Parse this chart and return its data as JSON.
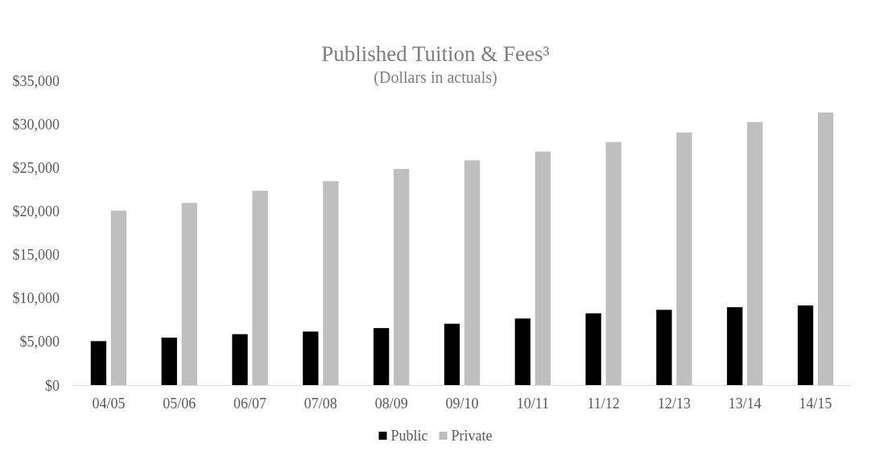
{
  "chart_data": {
    "type": "bar",
    "title": "Published Tuition & Fees³",
    "subtitle": "(Dollars in actuals)",
    "categories": [
      "04/05",
      "05/06",
      "06/07",
      "07/08",
      "08/09",
      "09/10",
      "10/11",
      "11/12",
      "12/13",
      "13/14",
      "14/15"
    ],
    "series": [
      {
        "name": "Public",
        "color": "#000000",
        "values": [
          5100,
          5500,
          5900,
          6200,
          6600,
          7100,
          7700,
          8300,
          8700,
          9000,
          9200
        ]
      },
      {
        "name": "Private",
        "color": "#bfbfbf",
        "values": [
          20100,
          21000,
          22400,
          23500,
          24900,
          25900,
          26900,
          28000,
          29100,
          30300,
          31400
        ]
      }
    ],
    "ylim": [
      0,
      35000
    ],
    "yticks": [
      {
        "value": 0,
        "label": "$0"
      },
      {
        "value": 5000,
        "label": "$5,000"
      },
      {
        "value": 10000,
        "label": "$10,000"
      },
      {
        "value": 15000,
        "label": "$15,000"
      },
      {
        "value": 20000,
        "label": "$20,000"
      },
      {
        "value": 25000,
        "label": "$25,000"
      },
      {
        "value": 30000,
        "label": "$30,000"
      },
      {
        "value": 35000,
        "label": "$35,000"
      }
    ],
    "legend": "bottom"
  }
}
